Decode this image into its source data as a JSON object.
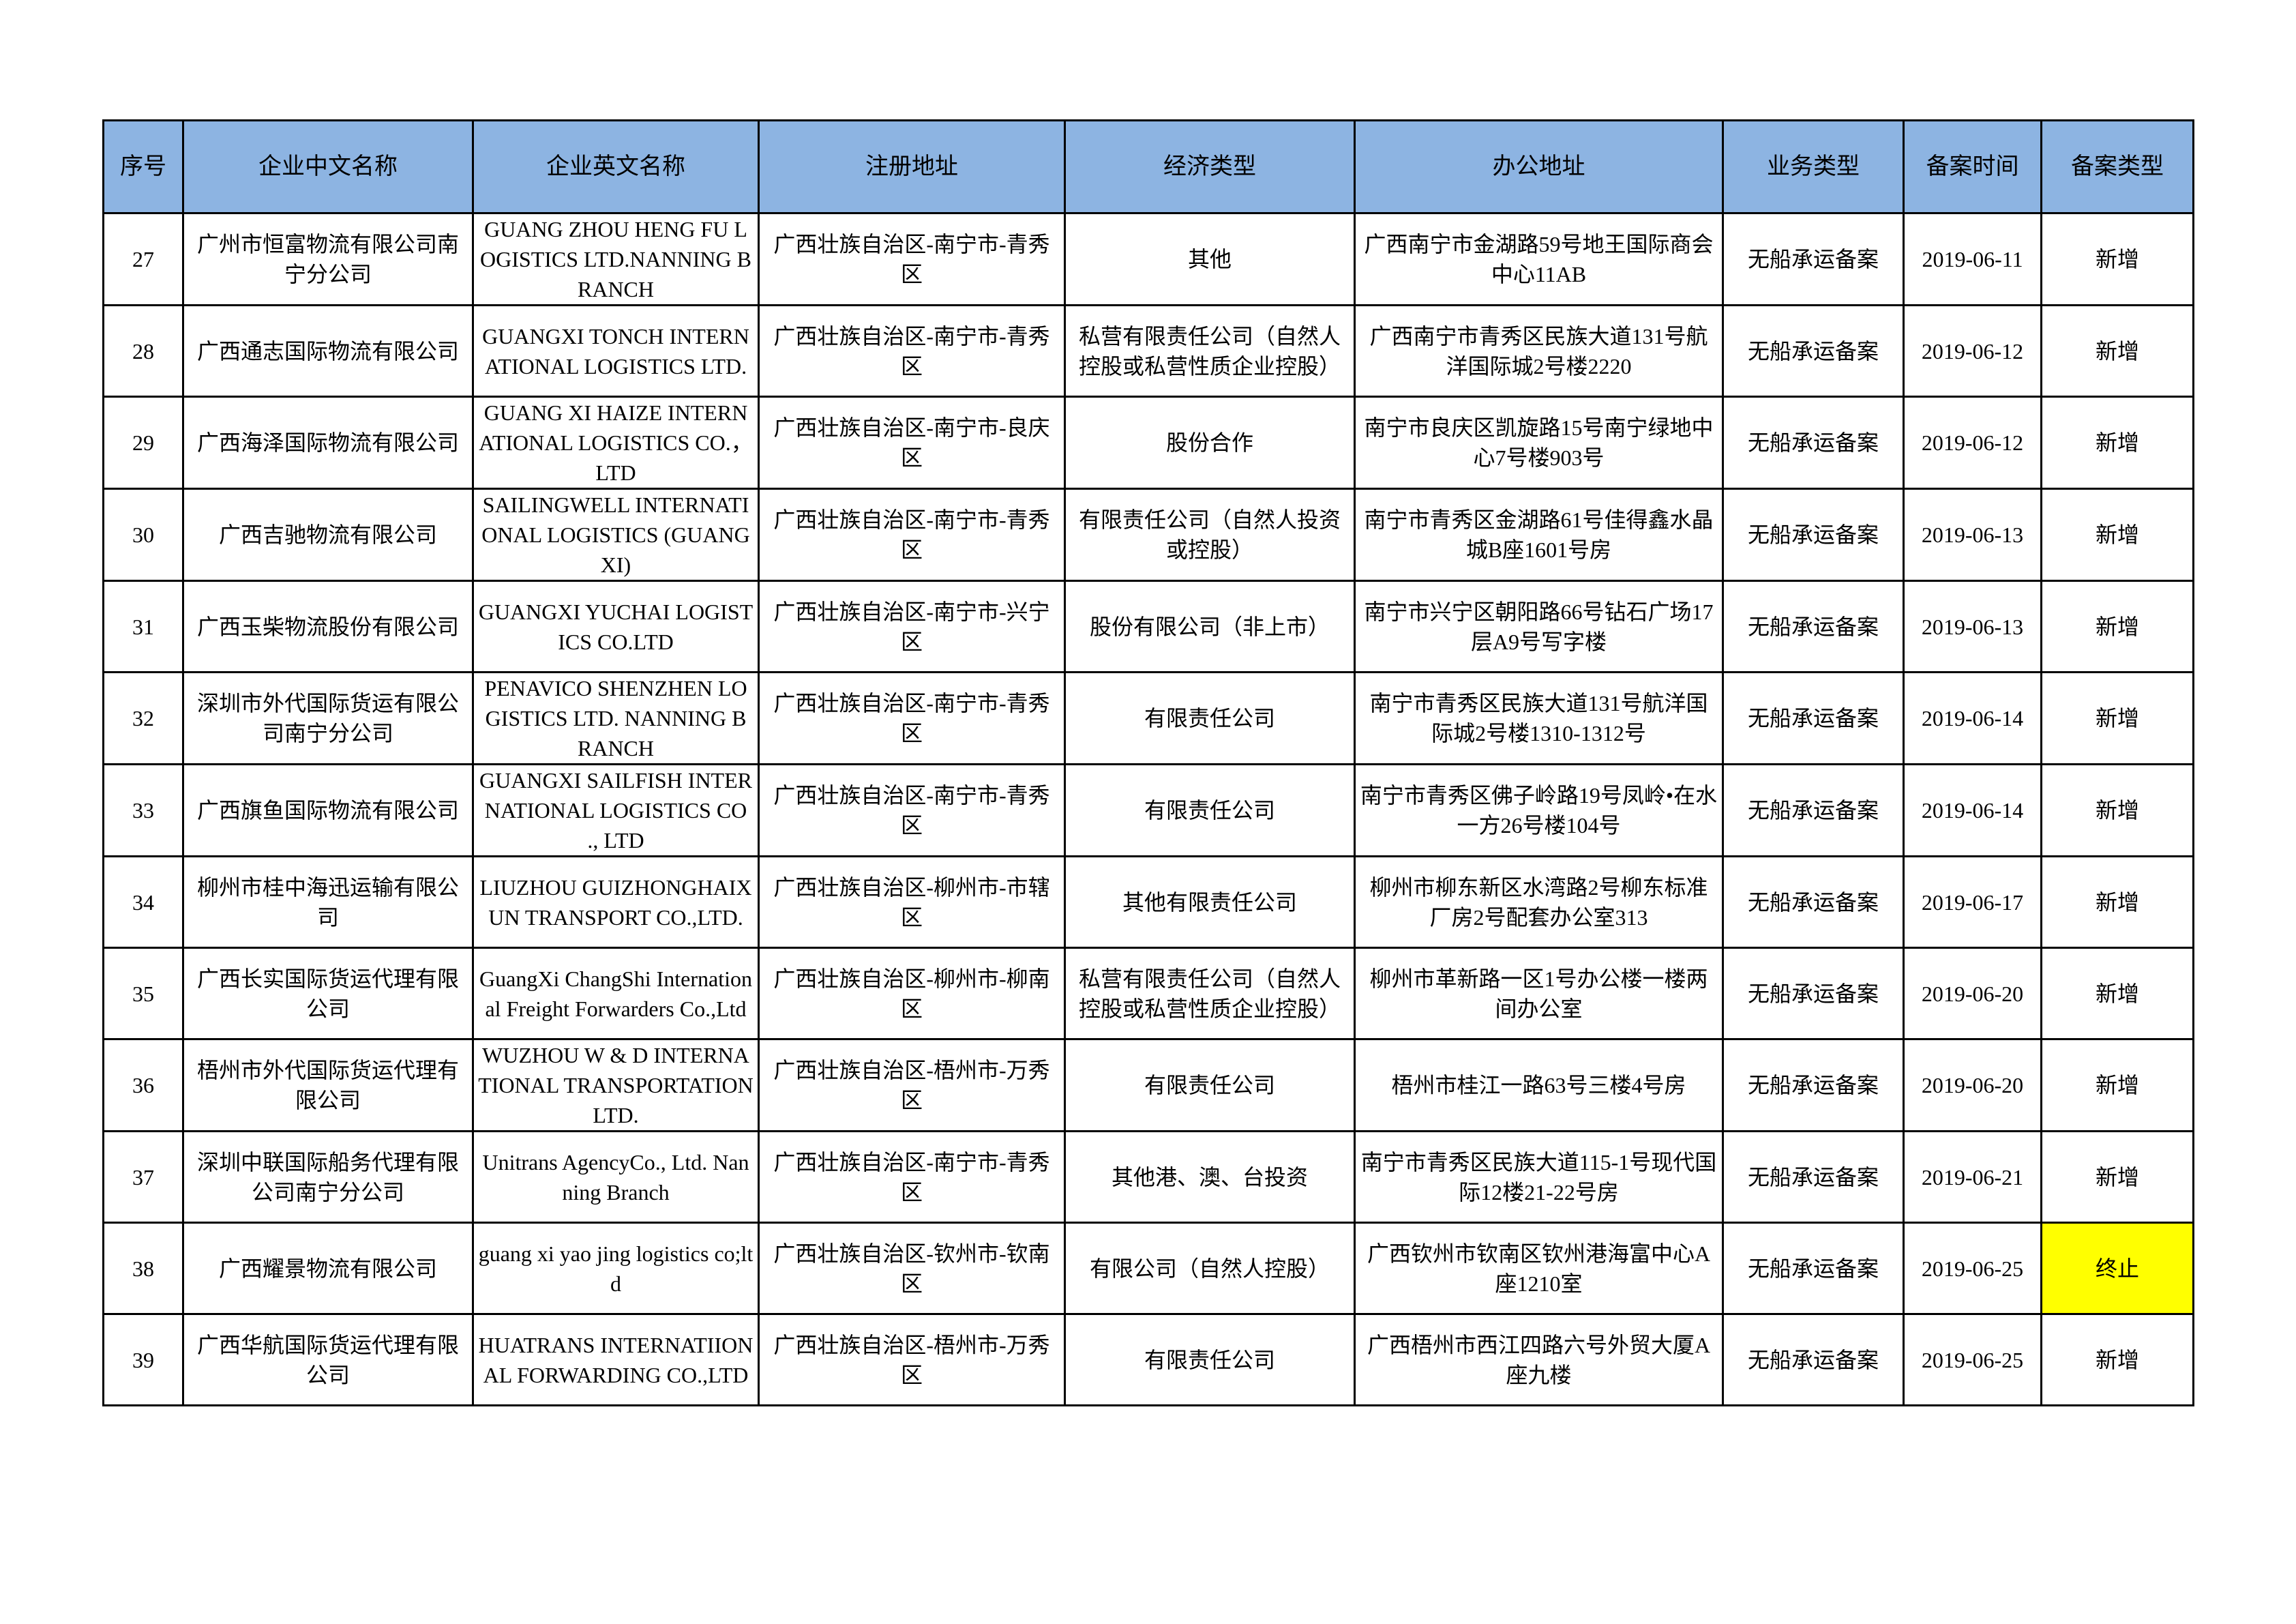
{
  "headers": [
    "序号",
    "企业中文名称",
    "企业英文名称",
    "注册地址",
    "经济类型",
    "办公地址",
    "业务类型",
    "备案时间",
    "备案类型"
  ],
  "highlight_color": "#ffff00",
  "header_color": "#8db4e2",
  "rows": [
    {
      "no": "27",
      "cn": "广州市恒富物流有限公司南宁分公司",
      "en": "GUANG ZHOU HENG FU LOGISTICS LTD.NANNING BRANCH",
      "reg": "广西壮族自治区-南宁市-青秀区",
      "econ": "其他",
      "office": "广西南宁市金湖路59号地王国际商会中心11AB",
      "biz": "无船承运备案",
      "date": "2019-06-11",
      "type": "新增",
      "highlight": false
    },
    {
      "no": "28",
      "cn": "广西通志国际物流有限公司",
      "en": "GUANGXI  TONCH INTERNATIONAL LOGISTICS  LTD.",
      "reg": "广西壮族自治区-南宁市-青秀区",
      "econ": "私营有限责任公司（自然人控股或私营性质企业控股）",
      "office": "广西南宁市青秀区民族大道131号航洋国际城2号楼2220",
      "biz": "无船承运备案",
      "date": "2019-06-12",
      "type": "新增",
      "highlight": false
    },
    {
      "no": "29",
      "cn": "广西海泽国际物流有限公司",
      "en": "GUANG XI HAIZE INTERNATIONAL LOGISTICS CO.，LTD",
      "reg": "广西壮族自治区-南宁市-良庆区",
      "econ": "股份合作",
      "office": "南宁市良庆区凯旋路15号南宁绿地中心7号楼903号",
      "biz": "无船承运备案",
      "date": "2019-06-12",
      "type": "新增",
      "highlight": false
    },
    {
      "no": "30",
      "cn": "广西吉驰物流有限公司",
      "en": "SAILINGWELL INTERNATIONAL LOGISTICS (GUANGXI)",
      "reg": "广西壮族自治区-南宁市-青秀区",
      "econ": "有限责任公司（自然人投资或控股）",
      "office": "南宁市青秀区金湖路61号佳得鑫水晶城B座1601号房",
      "biz": "无船承运备案",
      "date": "2019-06-13",
      "type": "新增",
      "highlight": false
    },
    {
      "no": "31",
      "cn": "广西玉柴物流股份有限公司",
      "en": "GUANGXI YUCHAI LOGISTICS CO.LTD",
      "reg": "广西壮族自治区-南宁市-兴宁区",
      "econ": "股份有限公司（非上市）",
      "office": "南宁市兴宁区朝阳路66号钻石广场17层A9号写字楼",
      "biz": "无船承运备案",
      "date": "2019-06-13",
      "type": "新增",
      "highlight": false
    },
    {
      "no": "32",
      "cn": "深圳市外代国际货运有限公司南宁分公司",
      "en": "PENAVICO SHENZHEN LOGISTICS LTD. NANNING BRANCH",
      "reg": "广西壮族自治区-南宁市-青秀区",
      "econ": "有限责任公司",
      "office": "南宁市青秀区民族大道131号航洋国际城2号楼1310-1312号",
      "biz": "无船承运备案",
      "date": "2019-06-14",
      "type": "新增",
      "highlight": false
    },
    {
      "no": "33",
      "cn": "广西旗鱼国际物流有限公司",
      "en": "GUANGXI SAILFISH INTERNATIONAL LOGISTICS CO ., LTD",
      "reg": "广西壮族自治区-南宁市-青秀区",
      "econ": "有限责任公司",
      "office": "南宁市青秀区佛子岭路19号凤岭•在水一方26号楼104号",
      "biz": "无船承运备案",
      "date": "2019-06-14",
      "type": "新增",
      "highlight": false
    },
    {
      "no": "34",
      "cn": "柳州市桂中海迅运输有限公司",
      "en": "LIUZHOU GUIZHONGHAIXUN TRANSPORT CO.,LTD.",
      "reg": "广西壮族自治区-柳州市-市辖区",
      "econ": "其他有限责任公司",
      "office": "柳州市柳东新区水湾路2号柳东标准厂房2号配套办公室313",
      "biz": "无船承运备案",
      "date": "2019-06-17",
      "type": "新增",
      "highlight": false
    },
    {
      "no": "35",
      "cn": "广西长实国际货运代理有限公司",
      "en": "GuangXi ChangShi International Freight Forwarders Co.,Ltd",
      "reg": "广西壮族自治区-柳州市-柳南区",
      "econ": "私营有限责任公司（自然人控股或私营性质企业控股）",
      "office": "柳州市革新路一区1号办公楼一楼两间办公室",
      "biz": "无船承运备案",
      "date": "2019-06-20",
      "type": "新增",
      "highlight": false
    },
    {
      "no": "36",
      "cn": "梧州市外代国际货运代理有限公司",
      "en": "WUZHOU W & D INTERNATIONAL TRANSPORTATION LTD.",
      "reg": "广西壮族自治区-梧州市-万秀区",
      "econ": "有限责任公司",
      "office": "梧州市桂江一路63号三楼4号房",
      "biz": "无船承运备案",
      "date": "2019-06-20",
      "type": "新增",
      "highlight": false
    },
    {
      "no": "37",
      "cn": "深圳中联国际船务代理有限公司南宁分公司",
      "en": "Unitrans AgencyCo., Ltd. Nanning Branch",
      "reg": "广西壮族自治区-南宁市-青秀区",
      "econ": "其他港、澳、台投资",
      "office": "南宁市青秀区民族大道115-1号现代国际12楼21-22号房",
      "biz": "无船承运备案",
      "date": "2019-06-21",
      "type": "新增",
      "highlight": false
    },
    {
      "no": "38",
      "cn": "广西耀景物流有限公司",
      "en": "guang xi yao jing logistics co;ltd",
      "reg": "广西壮族自治区-钦州市-钦南区",
      "econ": "有限公司（自然人控股）",
      "office": "广西钦州市钦南区钦州港海富中心A座1210室",
      "biz": "无船承运备案",
      "date": "2019-06-25",
      "type": "终止",
      "highlight": true
    },
    {
      "no": "39",
      "cn": "广西华航国际货运代理有限公司",
      "en": "HUATRANS INTERNATIIONAL FORWARDING CO.,LTD",
      "reg": "广西壮族自治区-梧州市-万秀区",
      "econ": "有限责任公司",
      "office": "广西梧州市西江四路六号外贸大厦A座九楼",
      "biz": "无船承运备案",
      "date": "2019-06-25",
      "type": "新增",
      "highlight": false
    }
  ]
}
